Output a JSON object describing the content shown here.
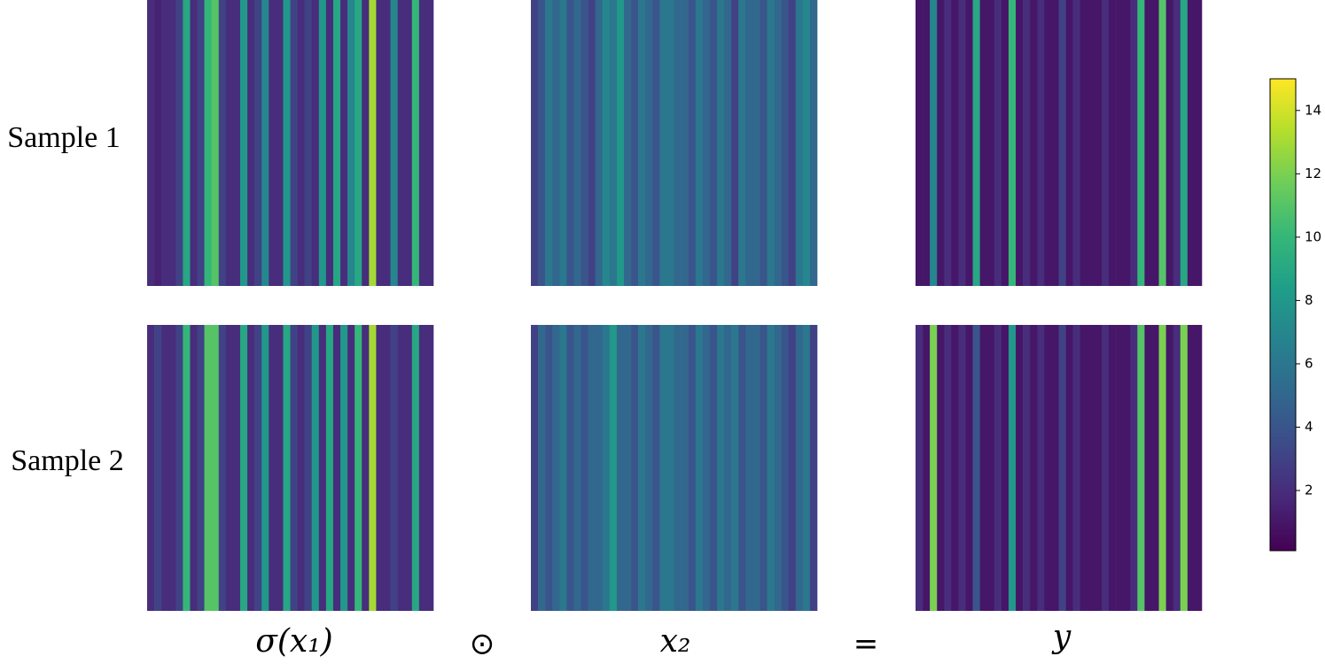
{
  "chart_data": {
    "type": "heatmap",
    "colormap": "viridis",
    "clim": [
      0.1,
      15
    ],
    "cticks": [
      2,
      4,
      6,
      8,
      10,
      12,
      14
    ],
    "row_labels": [
      "Sample 1",
      "Sample 2"
    ],
    "column_labels": [
      "σ(x₁)",
      "x₂",
      "y"
    ],
    "operators": [
      "⊙",
      "="
    ],
    "panels": [
      [
        [
          2,
          1.5,
          2,
          2,
          3,
          9,
          2,
          3,
          10,
          11,
          3,
          2,
          2,
          8,
          2,
          3,
          7,
          2,
          2,
          8,
          3,
          2,
          3,
          2,
          8,
          2,
          9,
          2,
          7,
          9,
          2,
          13,
          2,
          2,
          7,
          2,
          2,
          10,
          2,
          2
        ],
        [
          3,
          4,
          6,
          5,
          6,
          4,
          5,
          4,
          3,
          5,
          7,
          6,
          8,
          5,
          4,
          6,
          5,
          4,
          6,
          6,
          5,
          5,
          4,
          6,
          5,
          4,
          6,
          5,
          3,
          6,
          5,
          5,
          4,
          6,
          5,
          4,
          3,
          6,
          7,
          5
        ],
        [
          1,
          1,
          7,
          1,
          2,
          1,
          2,
          1,
          9,
          1,
          1,
          2,
          1,
          10,
          1,
          2,
          1,
          2,
          1,
          1,
          3,
          1,
          2,
          1,
          1,
          1,
          2,
          1,
          1,
          1,
          2,
          10,
          1,
          1,
          11,
          1,
          2,
          9,
          1,
          1
        ]
      ],
      [
        [
          2,
          3,
          2,
          2,
          3,
          10,
          2,
          3,
          11,
          11,
          3,
          2,
          2,
          9,
          2,
          3,
          8,
          2,
          2,
          9,
          3,
          2,
          3,
          8,
          2,
          9,
          2,
          8,
          2,
          10,
          2,
          13,
          2,
          2,
          3,
          2,
          2,
          9,
          2,
          2
        ],
        [
          3,
          5,
          4,
          5,
          6,
          4,
          5,
          4,
          5,
          5,
          6,
          8,
          5,
          5,
          4,
          6,
          5,
          4,
          6,
          6,
          5,
          5,
          4,
          6,
          5,
          4,
          6,
          5,
          6,
          4,
          5,
          5,
          4,
          6,
          5,
          4,
          3,
          5,
          6,
          3
        ],
        [
          2,
          1,
          12,
          1,
          2,
          1,
          2,
          1,
          4,
          1,
          1,
          2,
          1,
          8,
          1,
          2,
          1,
          2,
          1,
          1,
          3,
          1,
          2,
          1,
          1,
          1,
          2,
          1,
          1,
          1,
          2,
          11,
          1,
          1,
          12,
          1,
          2,
          12,
          1,
          1
        ]
      ]
    ]
  }
}
